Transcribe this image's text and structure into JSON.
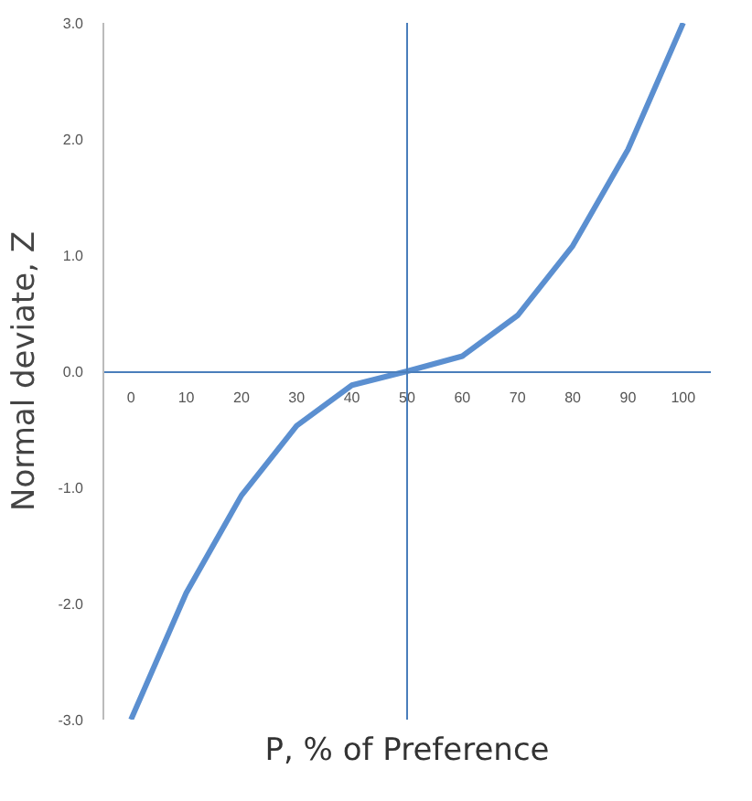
{
  "chart_data": {
    "type": "line",
    "xlabel": "P, % of Preference",
    "ylabel": "Normal deviate, Z",
    "x": [
      0,
      10,
      20,
      30,
      40,
      50,
      60,
      70,
      80,
      90,
      100
    ],
    "series": [
      {
        "color": "#5b8fd0",
        "values": [
          -3.0,
          -1.91,
          -1.07,
          -0.47,
          -0.12,
          0,
          0.13,
          0.48,
          1.08,
          1.91,
          3.0
        ]
      }
    ],
    "xlim": [
      -5,
      105
    ],
    "ylim": [
      -3,
      3
    ],
    "xticks": [
      0,
      10,
      20,
      30,
      40,
      50,
      60,
      70,
      80,
      90,
      100
    ],
    "yticks": [
      {
        "value": -3,
        "label": "-3.0"
      },
      {
        "value": -2,
        "label": "-2.0"
      },
      {
        "value": -1,
        "label": "-1.0"
      },
      {
        "value": 0,
        "label": "0.0"
      },
      {
        "value": 1,
        "label": "1.0"
      },
      {
        "value": 2,
        "label": "2.0"
      },
      {
        "value": 3,
        "label": "3.0"
      }
    ],
    "ref_lines": [
      {
        "axis": "x",
        "value": 50,
        "color": "#4a7ebb"
      }
    ],
    "grid": false,
    "marker": "none",
    "line_style": "solid"
  }
}
